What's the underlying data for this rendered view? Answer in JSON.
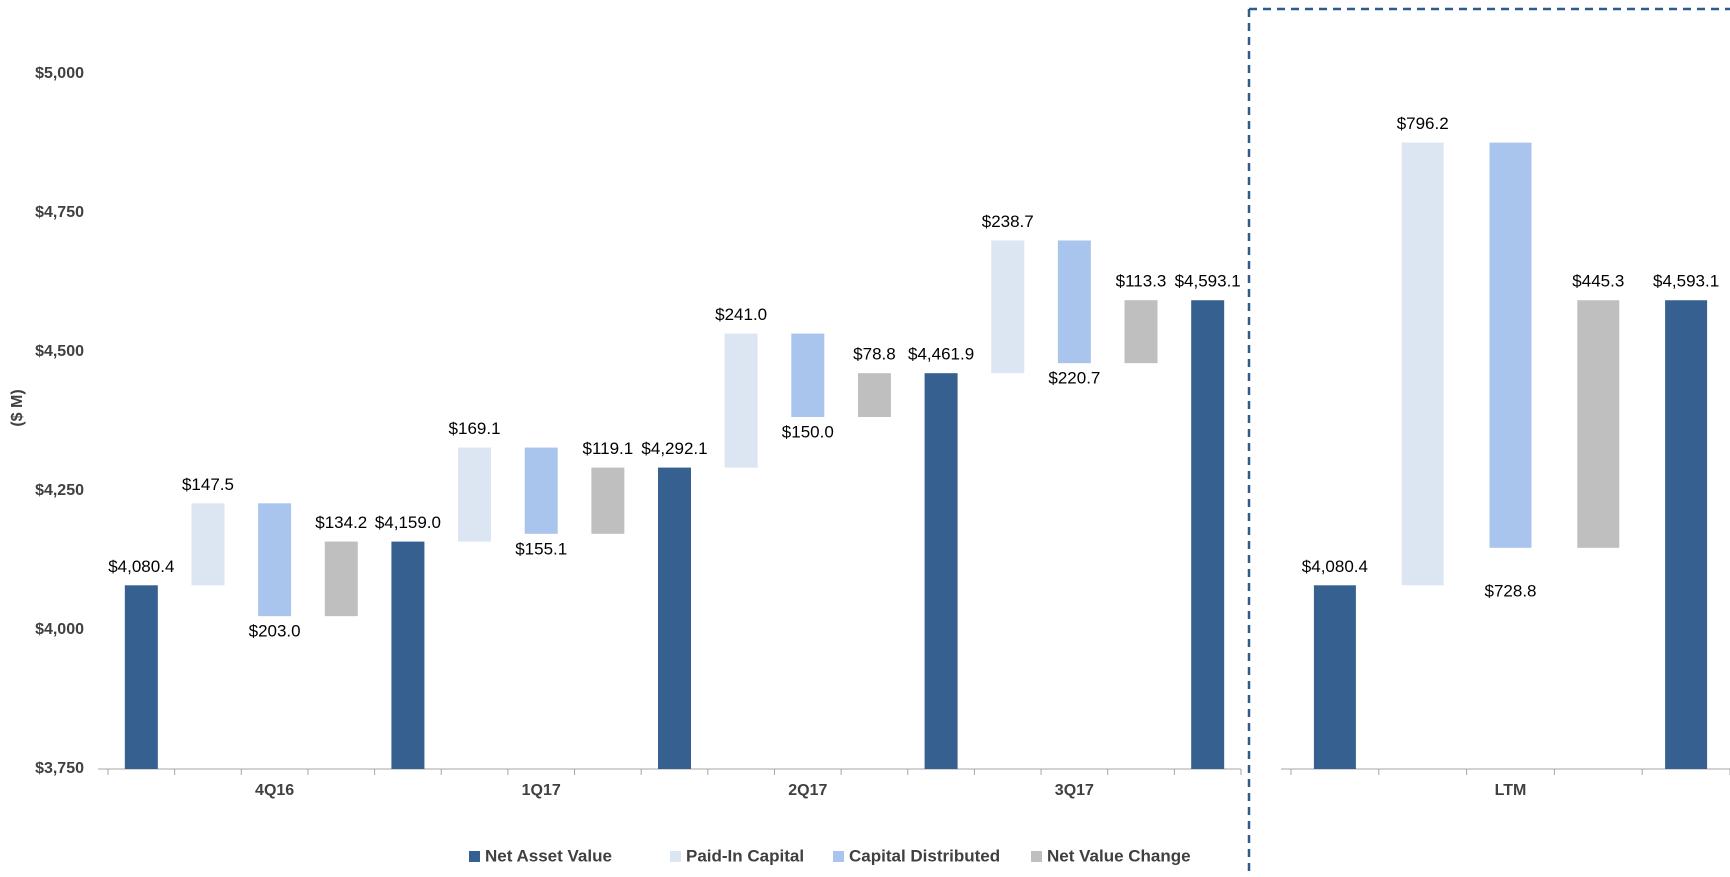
{
  "chart_data": [
    {
      "type": "waterfall",
      "y_label": "($ M)",
      "ylim": [
        3750,
        5000
      ],
      "yticks": [
        {
          "value": 3750,
          "label": "$3,750"
        },
        {
          "value": 4000,
          "label": "$4,000"
        },
        {
          "value": 4250,
          "label": "$4,250"
        },
        {
          "value": 4500,
          "label": "$4,500"
        },
        {
          "value": 4750,
          "label": "$4,750"
        },
        {
          "value": 5000,
          "label": "$5,000"
        }
      ],
      "categories": [
        null,
        null,
        "4Q16",
        null,
        null,
        null,
        "1Q17",
        null,
        null,
        null,
        "2Q17",
        null,
        null,
        null,
        "3Q17",
        null,
        null
      ],
      "series": [
        {
          "name": "Net Asset Value",
          "color": "#35608f",
          "measure": "absolute",
          "values": [
            4080.4,
            null,
            null,
            null,
            4159.0,
            null,
            null,
            null,
            4292.1,
            null,
            null,
            null,
            4461.9,
            null,
            null,
            null,
            4593.1
          ],
          "value_labels": [
            "$4,080.4",
            null,
            null,
            null,
            "$4,159.0",
            null,
            null,
            null,
            "$4,292.1",
            null,
            null,
            null,
            "$4,461.9",
            null,
            null,
            null,
            "$4,593.1"
          ]
        },
        {
          "name": "Paid-In Capital",
          "color": "#dce6f2",
          "measure": "relative",
          "values": [
            null,
            147.5,
            null,
            null,
            null,
            169.1,
            null,
            null,
            null,
            241.0,
            null,
            null,
            null,
            238.7,
            null,
            null,
            null
          ],
          "value_labels": [
            null,
            "$147.5",
            null,
            null,
            null,
            "$169.1",
            null,
            null,
            null,
            "$241.0",
            null,
            null,
            null,
            "$238.7",
            null,
            null,
            null
          ]
        },
        {
          "name": "Capital Distributed",
          "color": "#a9c5ee",
          "measure": "relative",
          "values": [
            null,
            null,
            -203.0,
            null,
            null,
            null,
            -155.1,
            null,
            null,
            null,
            -150.0,
            null,
            null,
            null,
            -220.7,
            null,
            null
          ],
          "value_labels": [
            null,
            null,
            "$203.0",
            null,
            null,
            null,
            "$155.1",
            null,
            null,
            null,
            "$150.0",
            null,
            null,
            null,
            "$220.7",
            null,
            null
          ]
        },
        {
          "name": "Net Value Change",
          "color": "#bfbfbf",
          "measure": "relative",
          "values": [
            null,
            null,
            null,
            134.2,
            null,
            null,
            null,
            119.1,
            null,
            null,
            null,
            78.8,
            null,
            null,
            null,
            113.3,
            null
          ],
          "value_labels": [
            null,
            null,
            null,
            "$134.2",
            null,
            null,
            null,
            "$119.1",
            null,
            null,
            null,
            "$78.8",
            null,
            null,
            null,
            "$113.3",
            null
          ]
        }
      ]
    },
    {
      "type": "waterfall",
      "ylim": [
        3750,
        5000
      ],
      "categories": [
        null,
        null,
        "LTM",
        null,
        null
      ],
      "values": [
        4080.4,
        796.2,
        -728.8,
        445.3,
        4593.1
      ],
      "value_labels": [
        "$4,080.4",
        "$796.2",
        "$728.8",
        "$445.3",
        "$4,593.1"
      ],
      "measure": [
        "absolute",
        "relative",
        "relative",
        "relative",
        "absolute"
      ],
      "colors": [
        "#35608f",
        "#dce6f2",
        "#a9c5ee",
        "#bfbfbf",
        "#35608f"
      ]
    }
  ]
}
